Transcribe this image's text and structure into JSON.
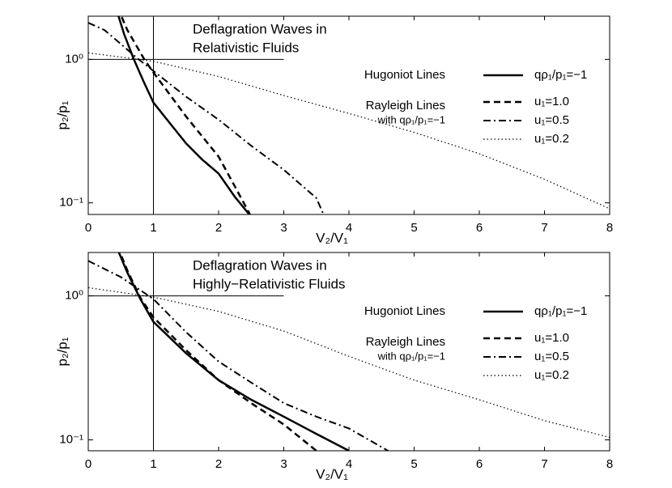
{
  "chart_data": [
    {
      "type": "line",
      "title": [
        "Deflagration Waves in",
        "Relativistic Fluids"
      ],
      "x_label": "V₂/V₁",
      "y_label": "p₂/p₁",
      "xlim": [
        0,
        8
      ],
      "xticks": [
        0,
        1,
        2,
        3,
        4,
        5,
        6,
        7,
        8
      ],
      "ylim": [
        0.083,
        2.0
      ],
      "log_y": true,
      "yticks": [
        {
          "value": 0.1,
          "label": "10⁻¹"
        },
        {
          "value": 1,
          "label": "10⁰"
        }
      ],
      "legend": "upper right",
      "annotations": [
        "Hugoniot Lines",
        "Rayleigh Lines",
        "with qρ₁/p₁=−1"
      ],
      "reference_lines": [
        {
          "y": 1,
          "x": [
            0,
            3
          ]
        },
        {
          "x": 1
        }
      ],
      "series": [
        {
          "name": "qρ₁/p₁=−1",
          "color": "#000000",
          "style": "solid",
          "x": [
            0.45,
            0.55,
            0.7,
            0.85,
            1,
            1.25,
            1.5,
            1.75,
            2,
            2.25,
            2.5
          ],
          "values": [
            2.1,
            1.5,
            1.0,
            0.7,
            0.5,
            0.36,
            0.26,
            0.2,
            0.16,
            0.11,
            0.08
          ]
        },
        {
          "name": "u₁=1.0",
          "color": "#000000",
          "style": "dashed",
          "x": [
            0.45,
            0.6,
            0.86,
            1,
            1.25,
            1.5,
            1.75,
            2,
            2.25,
            2.5
          ],
          "values": [
            2.3,
            1.6,
            1.0,
            0.81,
            0.57,
            0.4,
            0.29,
            0.21,
            0.13,
            0.08
          ]
        },
        {
          "name": "u₁=0.5",
          "color": "#000000",
          "style": "dashdot",
          "x": [
            0,
            0.25,
            0.5,
            0.75,
            1,
            1.5,
            2,
            2.5,
            3,
            3.5,
            3.6
          ],
          "values": [
            1.8,
            1.6,
            1.28,
            1.02,
            0.83,
            0.55,
            0.38,
            0.25,
            0.17,
            0.108,
            0.085
          ]
        },
        {
          "name": "u₁=0.2",
          "color": "#000000",
          "style": "dotted",
          "x": [
            0,
            1,
            2,
            3,
            4,
            5,
            6,
            7,
            8
          ],
          "values": [
            1.11,
            0.97,
            0.76,
            0.56,
            0.42,
            0.31,
            0.22,
            0.146,
            0.091
          ]
        }
      ]
    },
    {
      "type": "line",
      "title": [
        "Deflagration Waves in",
        "Highly−Relativistic Fluids"
      ],
      "x_label": "V₂/V₁",
      "y_label": "p₂/p₁",
      "xlim": [
        0,
        8
      ],
      "xticks": [
        0,
        1,
        2,
        3,
        4,
        5,
        6,
        7,
        8
      ],
      "ylim": [
        0.084,
        2.0
      ],
      "log_y": true,
      "yticks": [
        {
          "value": 0.1,
          "label": "10⁻¹"
        },
        {
          "value": 1,
          "label": "10⁰"
        }
      ],
      "legend": "upper right",
      "annotations": [
        "Hugoniot Lines",
        "Rayleigh Lines",
        "with qρ₁/p₁=−1"
      ],
      "reference_lines": [
        {
          "y": 1,
          "x": [
            0,
            3
          ]
        },
        {
          "x": 1
        }
      ],
      "series": [
        {
          "name": "qρ₁/p₁=−1",
          "color": "#000000",
          "style": "solid",
          "x": [
            0.47,
            0.6,
            0.8,
            1,
            1.5,
            2,
            2.5,
            3,
            3.5,
            4
          ],
          "values": [
            2.0,
            1.45,
            0.95,
            0.66,
            0.4,
            0.26,
            0.19,
            0.145,
            0.11,
            0.084
          ]
        },
        {
          "name": "u₁=1.0",
          "color": "#000000",
          "style": "dashed",
          "x": [
            0.45,
            0.6,
            0.8,
            1,
            1.5,
            2,
            2.5,
            3,
            3.5
          ],
          "values": [
            2.2,
            1.5,
            0.97,
            0.71,
            0.42,
            0.26,
            0.18,
            0.128,
            0.084
          ]
        },
        {
          "name": "u₁=0.5",
          "color": "#000000",
          "style": "dashdot",
          "x": [
            0,
            0.5,
            1,
            1.5,
            2,
            2.5,
            3,
            3.5,
            4,
            4.6
          ],
          "values": [
            1.75,
            1.35,
            0.95,
            0.56,
            0.35,
            0.25,
            0.18,
            0.145,
            0.12,
            0.084
          ]
        },
        {
          "name": "u₁=0.2",
          "color": "#000000",
          "style": "dotted",
          "x": [
            0,
            1,
            2,
            3,
            4,
            5,
            6,
            7,
            8
          ],
          "values": [
            1.14,
            0.98,
            0.78,
            0.57,
            0.38,
            0.26,
            0.19,
            0.136,
            0.104
          ]
        }
      ]
    }
  ]
}
